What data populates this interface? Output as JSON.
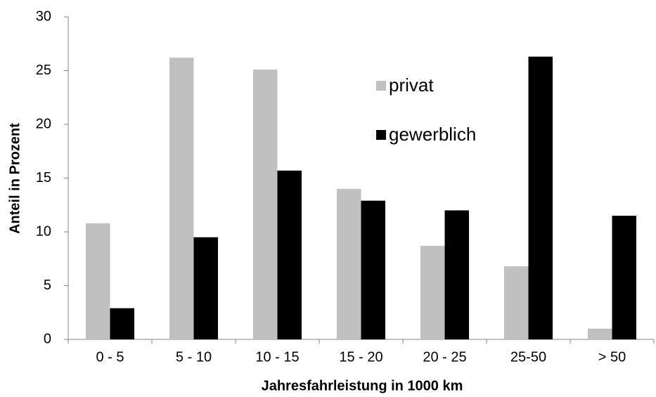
{
  "chart_data": {
    "type": "bar",
    "x_label": "Jahresfahrleistung in 1000 km",
    "y_label": "Anteil in Prozent",
    "categories": [
      "0 - 5",
      "5 - 10",
      "10 - 15",
      "15 - 20",
      "20 - 25",
      "25-50",
      "> 50"
    ],
    "series": [
      {
        "name": "privat",
        "color": "#c0c0c0",
        "values": [
          10.8,
          26.2,
          25.1,
          14.0,
          8.7,
          6.8,
          1.0
        ]
      },
      {
        "name": "gewerblich",
        "color": "#000000",
        "values": [
          2.9,
          9.5,
          15.7,
          12.9,
          12.0,
          26.3,
          11.5
        ]
      }
    ],
    "ylim": [
      0,
      30
    ],
    "yticks": [
      0,
      5,
      10,
      15,
      20,
      25,
      30
    ],
    "grid": false,
    "legend": "top-right"
  }
}
